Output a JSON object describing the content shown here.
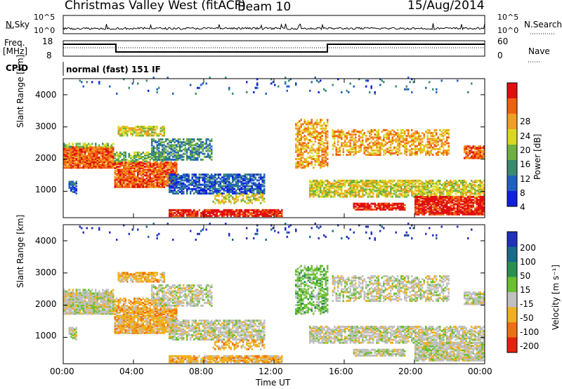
{
  "header": {
    "station": "Christmas Valley West (fitACF)",
    "beam": "Beam 10",
    "date": "15/Aug/2014"
  },
  "nsky_panel": {
    "left_label": "N.Sky",
    "right_label": "N.Search",
    "left_ticks": [
      "10^5",
      "10^0"
    ],
    "right_ticks": [
      "10^5",
      "10^0"
    ]
  },
  "freq_panel": {
    "left_label_1": "Freq.",
    "left_label_2": "[MHz]",
    "right_label": "Nave",
    "left_ticks": [
      "18",
      "8"
    ],
    "right_ticks": [
      "60",
      "0"
    ]
  },
  "cpid_panel": {
    "label": "CPID",
    "text": "normal (fast) 151 IF"
  },
  "chart_data": [
    {
      "type": "heatmap",
      "title": "",
      "xlabel": "Time UT",
      "ylabel": "Slant Range [km]",
      "x_ticks": [
        "00:00",
        "04:00",
        "08:00",
        "12:00",
        "16:00",
        "20:00",
        "00:00"
      ],
      "y_ticks": [
        "1000",
        "2000",
        "3000",
        "4000"
      ],
      "colorbar_label": "Power [dB]",
      "colorbar_ticks": [
        "4",
        "8",
        "12",
        "16",
        "20",
        "24",
        "28"
      ],
      "colorbar_colors": [
        "#1020e0",
        "#2060c0",
        "#3a8a70",
        "#70b040",
        "#d8d820",
        "#f0a020",
        "#f06010",
        "#e01010"
      ]
    },
    {
      "type": "heatmap",
      "title": "",
      "xlabel": "Time UT",
      "ylabel": "Slant Range [km]",
      "x_ticks": [
        "00:00",
        "04:00",
        "08:00",
        "12:00",
        "16:00",
        "20:00",
        "00:00"
      ],
      "y_ticks": [
        "1000",
        "2000",
        "3000",
        "4000"
      ],
      "colorbar_label": "Velocity [m s⁻¹]",
      "colorbar_ticks": [
        "200",
        "100",
        "50",
        "15",
        "-15",
        "-50",
        "-100",
        "-200"
      ],
      "colorbar_colors": [
        "#2030c0",
        "#1a6a8a",
        "#2a9050",
        "#6ac030",
        "#c0c0c0",
        "#f0b020",
        "#f07010",
        "#e82010"
      ]
    }
  ],
  "x_axis_label": "Time UT"
}
